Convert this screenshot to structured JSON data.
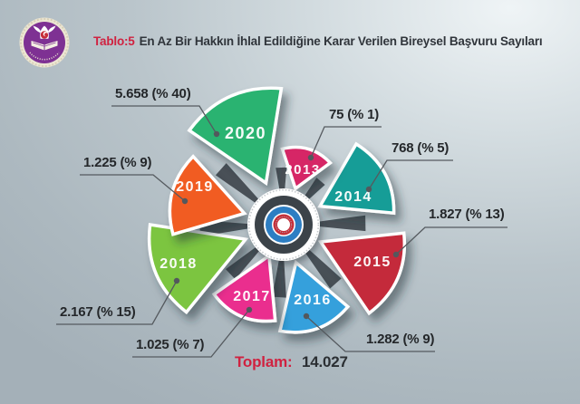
{
  "header": {
    "table_label": "Tablo:5",
    "title": "En Az Bir Hakkın İhlal Edildiğine Karar Verilen Bireysel Başvuru Sayıları"
  },
  "total": {
    "label": "Toplam:",
    "value": "14.027"
  },
  "icons": {
    "logo": "court-emblem-icon",
    "center": "bullseye-target-icon"
  },
  "colors": {
    "red_accent": "#d02240",
    "title_text": "#30353b",
    "label_text": "#24272a",
    "background": "#b4bfc6"
  },
  "chart_data": {
    "type": "pie",
    "variant": "pinwheel-rose",
    "title": "Tablo:5 En Az Bir Hakkın İhlal Edildiğine Karar Verilen Bireysel Başvuru Sayıları",
    "total_label": "Toplam:",
    "total_display": "14.027",
    "total_value": 14027,
    "legend_position": "none",
    "grid": false,
    "slices": [
      {
        "category": "2013",
        "value": 75,
        "percent": 1,
        "callout": "75 (% 1)",
        "color": "#d62766"
      },
      {
        "category": "2014",
        "value": 768,
        "percent": 5,
        "callout": "768 (% 5)",
        "color": "#179d97"
      },
      {
        "category": "2015",
        "value": 1827,
        "percent": 13,
        "callout": "1.827 (% 13)",
        "color": "#c4293b"
      },
      {
        "category": "2016",
        "value": 1282,
        "percent": 9,
        "callout": "1.282 (% 9)",
        "color": "#34a0dc"
      },
      {
        "category": "2017",
        "value": 1025,
        "percent": 7,
        "callout": "1.025 (% 7)",
        "color": "#ea2d8e"
      },
      {
        "category": "2018",
        "value": 2167,
        "percent": 15,
        "callout": "2.167 (% 15)",
        "color": "#7cc53f"
      },
      {
        "category": "2019",
        "value": 1225,
        "percent": 9,
        "callout": "1.225 (% 9)",
        "color": "#f15b22"
      },
      {
        "category": "2020",
        "value": 5658,
        "percent": 40,
        "callout": "5.658 (% 40)",
        "color": "#2ab371"
      }
    ]
  }
}
